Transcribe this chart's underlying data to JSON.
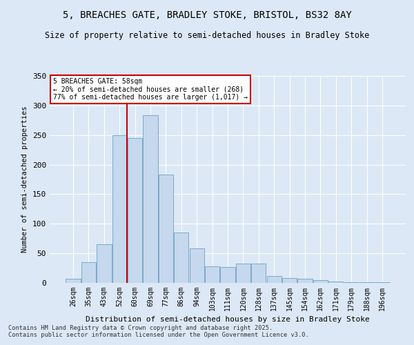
{
  "title_line1": "5, BREACHES GATE, BRADLEY STOKE, BRISTOL, BS32 8AY",
  "title_line2": "Size of property relative to semi-detached houses in Bradley Stoke",
  "xlabel": "Distribution of semi-detached houses by size in Bradley Stoke",
  "ylabel": "Number of semi-detached properties",
  "categories": [
    "26sqm",
    "35sqm",
    "43sqm",
    "52sqm",
    "60sqm",
    "69sqm",
    "77sqm",
    "86sqm",
    "94sqm",
    "103sqm",
    "111sqm",
    "120sqm",
    "128sqm",
    "137sqm",
    "145sqm",
    "154sqm",
    "162sqm",
    "171sqm",
    "179sqm",
    "188sqm",
    "196sqm"
  ],
  "values": [
    7,
    35,
    65,
    250,
    245,
    283,
    183,
    85,
    58,
    28,
    27,
    33,
    33,
    12,
    8,
    7,
    5,
    2,
    1,
    1,
    1
  ],
  "bar_color": "#c5d8ed",
  "bar_edge_color": "#7aaac8",
  "vline_color": "#cc0000",
  "vline_index": 3.5,
  "annotation_title": "5 BREACHES GATE: 58sqm",
  "annotation_line2": "← 20% of semi-detached houses are smaller (268)",
  "annotation_line3": "77% of semi-detached houses are larger (1,017) →",
  "annotation_box_color": "#cc0000",
  "ylim": [
    0,
    350
  ],
  "yticks": [
    0,
    50,
    100,
    150,
    200,
    250,
    300,
    350
  ],
  "background_color": "#dce8f5",
  "grid_color": "#ffffff",
  "footer_line1": "Contains HM Land Registry data © Crown copyright and database right 2025.",
  "footer_line2": "Contains public sector information licensed under the Open Government Licence v3.0."
}
